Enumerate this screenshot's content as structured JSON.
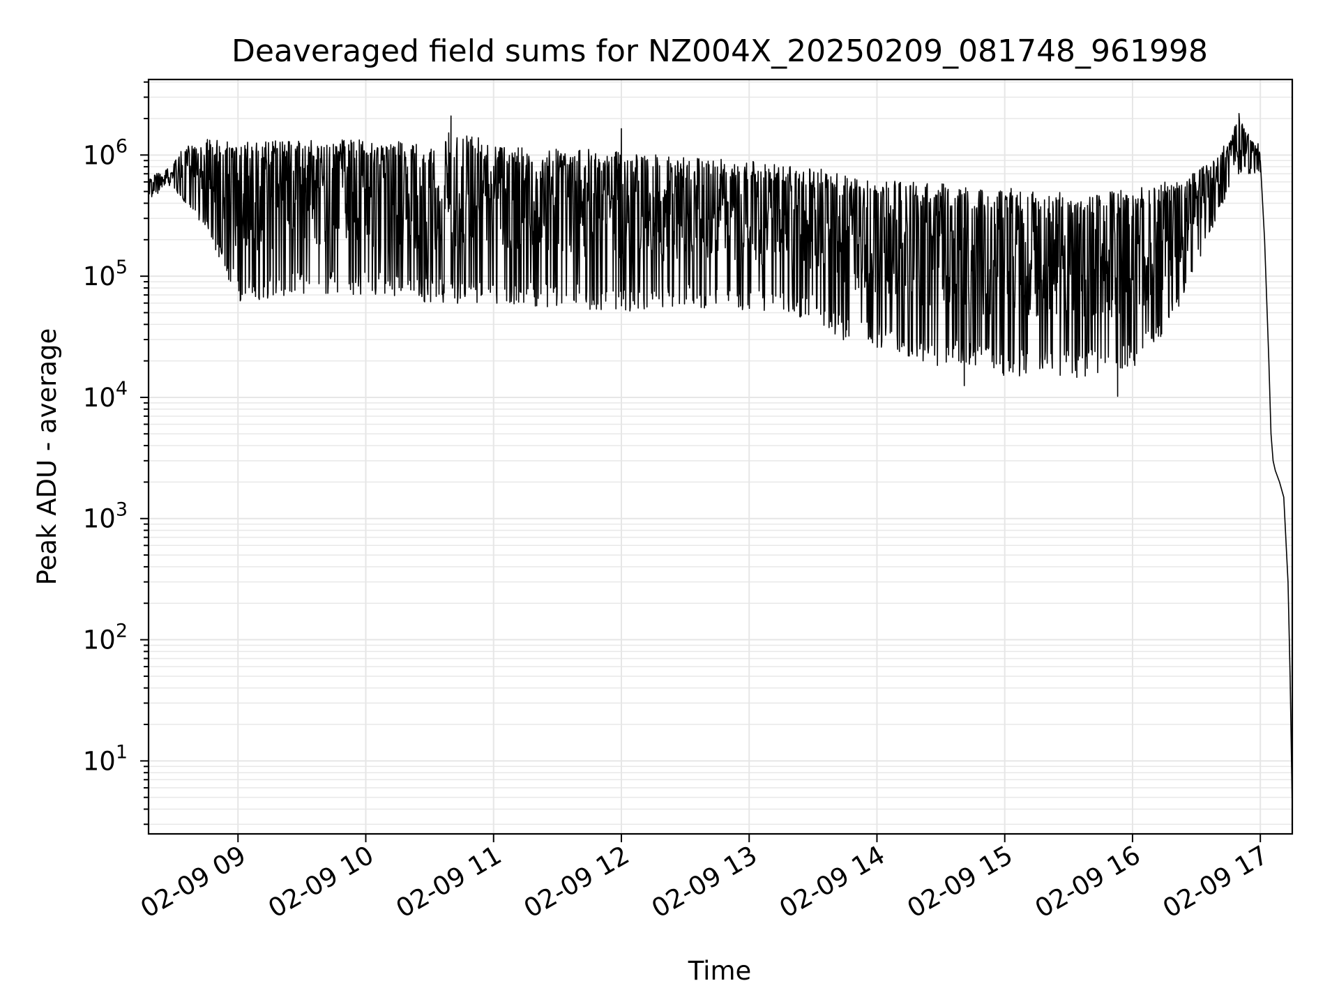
{
  "chart_data": {
    "type": "line",
    "title": "Deaveraged field sums for NZ004X_20250209_081748_961998",
    "xlabel": "Time",
    "ylabel": "Peak ADU - average",
    "yscale": "log",
    "grid": true,
    "xlim": [
      "02-09 08:18",
      "02-09 17:15"
    ],
    "ylim": [
      2.5,
      4200000
    ],
    "x_ticks": [
      "02-09 09",
      "02-09 10",
      "02-09 11",
      "02-09 12",
      "02-09 13",
      "02-09 14",
      "02-09 15",
      "02-09 16",
      "02-09 17"
    ],
    "y_ticks": [
      {
        "base": "10",
        "exp": "1",
        "value": 10
      },
      {
        "base": "10",
        "exp": "2",
        "value": 100
      },
      {
        "base": "10",
        "exp": "3",
        "value": 1000
      },
      {
        "base": "10",
        "exp": "4",
        "value": 10000
      },
      {
        "base": "10",
        "exp": "5",
        "value": 100000
      },
      {
        "base": "10",
        "exp": "6",
        "value": 1000000
      }
    ],
    "series": [
      {
        "color": "#000000",
        "envelope": [
          {
            "t": "02-09 08:18",
            "lo": 380000,
            "hi": 700000
          },
          {
            "t": "02-09 08:30",
            "lo": 500000,
            "hi": 1100000
          },
          {
            "t": "02-09 08:45",
            "lo": 250000,
            "hi": 1500000
          },
          {
            "t": "02-09 09:00",
            "lo": 60000,
            "hi": 1500000
          },
          {
            "t": "02-09 09:30",
            "lo": 70000,
            "hi": 1500000
          },
          {
            "t": "02-09 10:00",
            "lo": 70000,
            "hi": 1500000
          },
          {
            "t": "02-09 10:30",
            "lo": 60000,
            "hi": 1400000
          },
          {
            "t": "02-09 10:40",
            "lo": 60000,
            "hi": 2100000
          },
          {
            "t": "02-09 11:00",
            "lo": 55000,
            "hi": 1400000
          },
          {
            "t": "02-09 11:30",
            "lo": 55000,
            "hi": 1300000
          },
          {
            "t": "02-09 12:00",
            "lo": 50000,
            "hi": 1200000
          },
          {
            "t": "02-09 12:30",
            "lo": 55000,
            "hi": 1100000
          },
          {
            "t": "02-09 13:00",
            "lo": 50000,
            "hi": 1000000
          },
          {
            "t": "02-09 13:30",
            "lo": 45000,
            "hi": 900000
          },
          {
            "t": "02-09 13:45",
            "lo": 28000,
            "hi": 800000
          },
          {
            "t": "02-09 14:00",
            "lo": 25000,
            "hi": 700000
          },
          {
            "t": "02-09 14:30",
            "lo": 18000,
            "hi": 650000
          },
          {
            "t": "02-09 15:00",
            "lo": 15000,
            "hi": 600000
          },
          {
            "t": "02-09 15:30",
            "lo": 14000,
            "hi": 550000
          },
          {
            "t": "02-09 16:00",
            "lo": 16000,
            "hi": 600000
          },
          {
            "t": "02-09 16:15",
            "lo": 30000,
            "hi": 700000
          },
          {
            "t": "02-09 16:30",
            "lo": 120000,
            "hi": 800000
          },
          {
            "t": "02-09 16:45",
            "lo": 500000,
            "hi": 1400000
          },
          {
            "t": "02-09 16:50",
            "lo": 700000,
            "hi": 2200000
          },
          {
            "t": "02-09 17:00",
            "lo": 700000,
            "hi": 1200000
          }
        ],
        "tail": [
          {
            "t": "02-09 17:00",
            "y": 900000
          },
          {
            "t": "02-09 17:02",
            "y": 200000
          },
          {
            "t": "02-09 17:04",
            "y": 20000
          },
          {
            "t": "02-09 17:05",
            "y": 5000
          },
          {
            "t": "02-09 17:06",
            "y": 3000
          },
          {
            "t": "02-09 17:07",
            "y": 2500
          },
          {
            "t": "02-09 17:09",
            "y": 2000
          },
          {
            "t": "02-09 17:11",
            "y": 1500
          },
          {
            "t": "02-09 17:13",
            "y": 300
          },
          {
            "t": "02-09 17:14",
            "y": 50
          },
          {
            "t": "02-09 17:15",
            "y": 4
          }
        ],
        "spikes": [
          {
            "t": "02-09 10:40",
            "y": 2100000
          },
          {
            "t": "02-09 12:00",
            "y": 1650000
          },
          {
            "t": "02-09 14:41",
            "y": 12500
          },
          {
            "t": "02-09 15:53",
            "y": 10200
          },
          {
            "t": "02-09 16:50",
            "y": 2200000
          }
        ]
      }
    ]
  }
}
